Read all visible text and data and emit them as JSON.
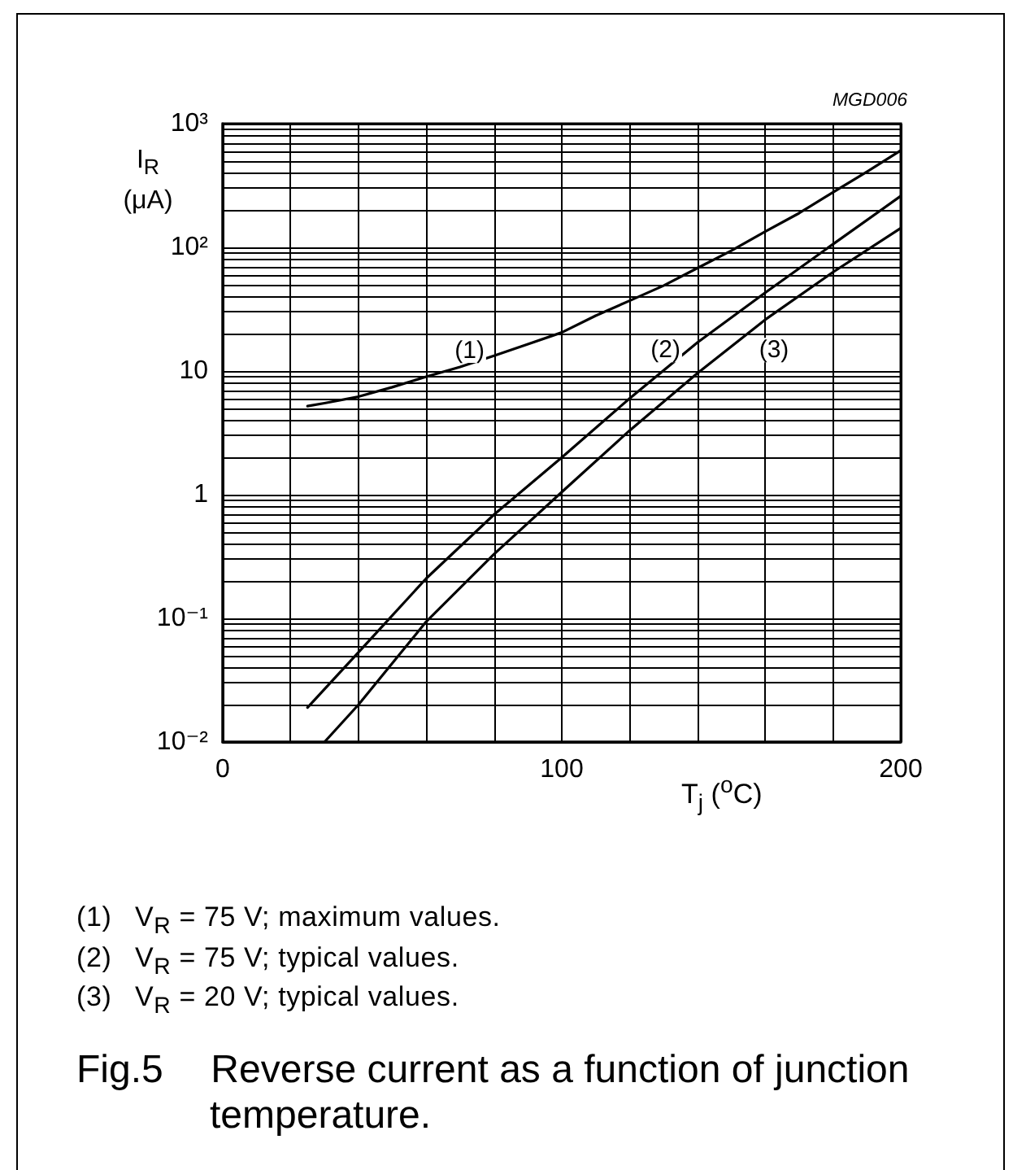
{
  "chart_data": {
    "type": "line",
    "title": "Fig.5 Reverse current as a function of junction temperature.",
    "subtitle": "MGD006",
    "xlabel": "T$_{j}$ ($^{o}$C)",
    "ylabel": "I$_{R}$ (μA)",
    "series": [
      {
        "name": "(1)",
        "color": "#000000",
        "x": [
          25,
          30,
          40,
          50,
          60,
          70,
          80,
          90,
          100,
          110,
          120,
          130,
          140,
          150,
          160,
          170,
          180,
          190,
          200
        ],
        "values": [
          5.2,
          5.5,
          6.2,
          7.4,
          9.0,
          10.8,
          13.3,
          16.5,
          20.5,
          28,
          37,
          49,
          68,
          94,
          134,
          189,
          279,
          408,
          608
        ]
      },
      {
        "name": "(2)",
        "color": "#000000",
        "x": [
          25,
          40,
          60,
          80,
          100,
          120,
          140,
          160,
          180,
          200
        ],
        "values": [
          0.019,
          0.053,
          0.21,
          0.69,
          2.0,
          6.0,
          17,
          43,
          106,
          260
        ]
      },
      {
        "name": "(3)",
        "color": "#000000",
        "x": [
          30,
          40,
          60,
          80,
          100,
          120,
          140,
          160,
          180,
          200
        ],
        "values": [
          0.01,
          0.02,
          0.094,
          0.33,
          1.05,
          3.3,
          9.6,
          26,
          63,
          143
        ]
      }
    ],
    "xlim": [
      0,
      200
    ],
    "xticks": [
      0,
      {
        "value": 20,
        "label": null
      },
      {
        "value": 40,
        "label": null
      },
      {
        "value": 60,
        "label": null
      },
      {
        "value": 80,
        "label": null
      },
      100,
      {
        "value": 120,
        "label": null
      },
      {
        "value": 140,
        "label": null
      },
      {
        "value": 160,
        "label": null
      },
      {
        "value": 180,
        "label": null
      },
      200
    ],
    "ylim": [
      0.01,
      1000
    ],
    "yticks": [
      {
        "value": 0.01,
        "label": "10⁻²"
      },
      {
        "value": 0.1,
        "label": "10⁻¹"
      },
      1,
      10,
      {
        "value": 100,
        "label": "10²"
      },
      {
        "value": 1000,
        "label": "10³"
      }
    ],
    "log": "y",
    "grid": true,
    "marker": "none",
    "line_style": "solid",
    "annotations": [
      "(1) V$_{R}$ = 75 V; maximum values.",
      "(2) V$_{R}$ = 75 V; typical values.",
      "(3) V$_{R}$ = 20 V; typical values."
    ]
  }
}
